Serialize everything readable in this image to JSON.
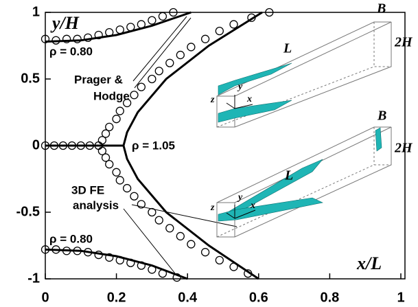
{
  "chart_data": {
    "type": "line",
    "xlabel": "x/L",
    "ylabel": "y/H",
    "xlim": [
      0,
      1
    ],
    "ylim": [
      -1,
      1
    ],
    "xticks": [
      0,
      0.2,
      0.4,
      0.6,
      0.8,
      1
    ],
    "yticks": [
      -1,
      -0.5,
      0,
      0.5,
      1
    ],
    "grid": false,
    "annotations": [
      "ρ = 0.80",
      "ρ = 1.05",
      "ρ = 0.80",
      "Prager &",
      "Hodge",
      "3D FE",
      "analysis"
    ],
    "inset_labels": [
      "L",
      "B",
      "2H",
      "x",
      "y",
      "z",
      "L",
      "B",
      "2H",
      "x",
      "y",
      "z"
    ],
    "series": [
      {
        "style": "line",
        "color": "#000000",
        "x": [
          0,
          0.1,
          0.2,
          0.3,
          0.41
        ],
        "values": [
          0.78,
          0.79,
          0.83,
          0.9,
          1
        ]
      },
      {
        "style": "line",
        "color": "#000000",
        "x": [
          0,
          0.1,
          0.2,
          0.3,
          0.4
        ],
        "values": [
          -0.78,
          -0.79,
          -0.83,
          -0.9,
          -1
        ]
      },
      {
        "style": "line",
        "color": "#000000",
        "x": [
          0,
          0.22
        ],
        "values": [
          0,
          0
        ]
      },
      {
        "style": "line",
        "color": "#000000",
        "x": [
          0.61,
          0.46,
          0.34,
          0.26,
          0.23,
          0.22,
          0.23,
          0.26,
          0.34,
          0.46,
          0.6
        ],
        "values": [
          1,
          0.75,
          0.5,
          0.25,
          0.1,
          0,
          -0.1,
          -0.25,
          -0.5,
          -0.75,
          -1
        ]
      },
      {
        "style": "marker",
        "color": "#000000",
        "x": [
          0,
          0.03,
          0.06,
          0.09,
          0.12,
          0.15,
          0.18,
          0.21,
          0.24,
          0.27,
          0.3,
          0.33,
          0.36
        ],
        "values": [
          0.8,
          0.79,
          0.8,
          0.8,
          0.81,
          0.83,
          0.85,
          0.87,
          0.89,
          0.91,
          0.94,
          0.97,
          1
        ]
      },
      {
        "style": "marker",
        "color": "#000000",
        "x": [
          0,
          0.03,
          0.06,
          0.09,
          0.12,
          0.15,
          0.18,
          0.21,
          0.24,
          0.27,
          0.3,
          0.33,
          0.37
        ],
        "values": [
          -0.78,
          -0.78,
          -0.79,
          -0.79,
          -0.8,
          -0.82,
          -0.84,
          -0.86,
          -0.88,
          -0.9,
          -0.93,
          -0.96,
          -0.99
        ]
      },
      {
        "style": "marker",
        "color": "#000000",
        "x": [
          0,
          0.025,
          0.05,
          0.075,
          0.1,
          0.125,
          0.15,
          0.16,
          0.17,
          0.18,
          0.2,
          0.21,
          0.23,
          0.25,
          0.27,
          0.3,
          0.32,
          0.35,
          0.38,
          0.41,
          0.45,
          0.49,
          0.53,
          0.58,
          0.63,
          0.16,
          0.17,
          0.18,
          0.2,
          0.21,
          0.23,
          0.25,
          0.27,
          0.3,
          0.32,
          0.35,
          0.38,
          0.41,
          0.45,
          0.49,
          0.53,
          0.57
        ],
        "values": [
          0,
          0,
          0,
          0,
          0,
          0,
          0,
          0.04,
          0.09,
          0.14,
          0.2,
          0.26,
          0.32,
          0.38,
          0.44,
          0.5,
          0.56,
          0.62,
          0.68,
          0.74,
          0.8,
          0.86,
          0.91,
          0.96,
          1,
          -0.04,
          -0.09,
          -0.14,
          -0.2,
          -0.26,
          -0.32,
          -0.38,
          -0.44,
          -0.5,
          -0.56,
          -0.62,
          -0.68,
          -0.74,
          -0.8,
          -0.86,
          -0.91,
          -0.96
        ]
      }
    ]
  }
}
